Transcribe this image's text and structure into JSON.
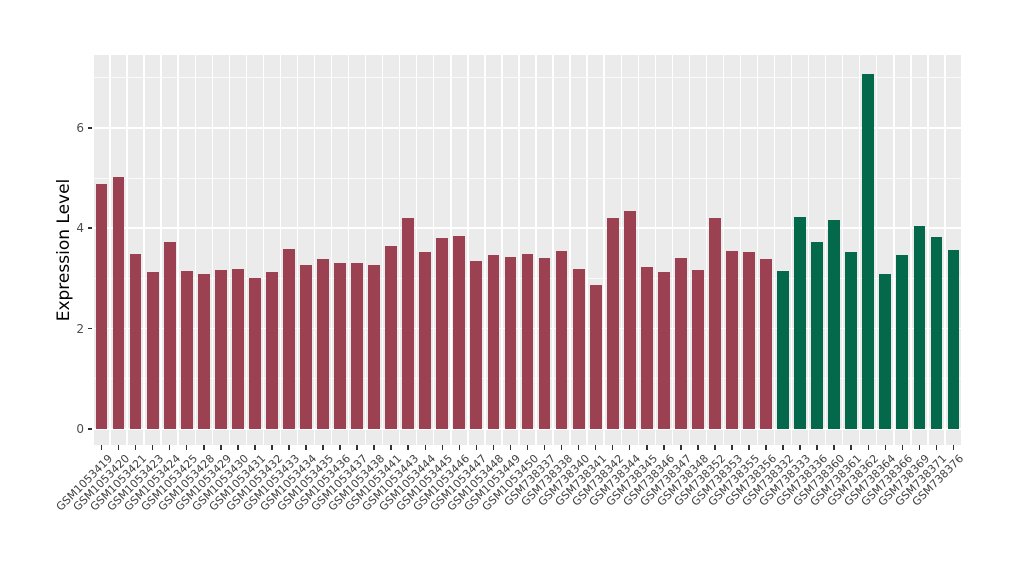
{
  "figure": {
    "background": "#FFFFFF",
    "panel_background": "#EBEBEB",
    "gridline_color": "#FFFFFF",
    "tick_mark_color": "#333333",
    "axis_text_color": "#404040",
    "axis_title_color": "#000000"
  },
  "chart_data": {
    "type": "bar",
    "title": "",
    "xlabel": "",
    "ylabel": "Expression Level",
    "ylim": [
      -0.33,
      7.45
    ],
    "yticks": [
      0,
      2,
      4,
      6
    ],
    "yticks_minor": [
      1,
      3,
      5,
      7
    ],
    "grid": "major+minor, white on gray panel",
    "legend": "none",
    "palette": [
      "#9B4151",
      "#04684A"
    ],
    "categories": [
      "GSM1053419",
      "GSM1053420",
      "GSM1053421",
      "GSM1053423",
      "GSM1053424",
      "GSM1053425",
      "GSM1053428",
      "GSM1053429",
      "GSM1053430",
      "GSM1053431",
      "GSM1053432",
      "GSM1053433",
      "GSM1053434",
      "GSM1053435",
      "GSM1053436",
      "GSM1053437",
      "GSM1053438",
      "GSM1053441",
      "GSM1053443",
      "GSM1053444",
      "GSM1053445",
      "GSM1053446",
      "GSM1053447",
      "GSM1053448",
      "GSM1053449",
      "GSM1053450",
      "GSM738337",
      "GSM738338",
      "GSM738340",
      "GSM738341",
      "GSM738342",
      "GSM738344",
      "GSM738345",
      "GSM738346",
      "GSM738347",
      "GSM738348",
      "GSM738352",
      "GSM738353",
      "GSM738355",
      "GSM738356",
      "GSM738332",
      "GSM738333",
      "GSM738336",
      "GSM738360",
      "GSM738361",
      "GSM738362",
      "GSM738364",
      "GSM738366",
      "GSM738369",
      "GSM738371",
      "GSM738376"
    ],
    "values": [
      4.88,
      5.02,
      3.49,
      3.13,
      3.73,
      3.15,
      3.08,
      3.16,
      3.18,
      3.01,
      3.13,
      3.59,
      3.26,
      3.39,
      3.31,
      3.31,
      3.26,
      3.65,
      4.2,
      3.53,
      3.81,
      3.85,
      3.34,
      3.47,
      3.43,
      3.49,
      3.41,
      3.55,
      3.19,
      2.87,
      4.21,
      4.35,
      3.23,
      3.13,
      3.41,
      3.16,
      4.2,
      3.55,
      3.53,
      3.38,
      3.15,
      4.23,
      3.72,
      4.16,
      3.52,
      7.08,
      3.09,
      3.46,
      4.05,
      3.83,
      3.57
    ],
    "groups": [
      0,
      0,
      0,
      0,
      0,
      0,
      0,
      0,
      0,
      0,
      0,
      0,
      0,
      0,
      0,
      0,
      0,
      0,
      0,
      0,
      0,
      0,
      0,
      0,
      0,
      0,
      0,
      0,
      0,
      0,
      0,
      0,
      0,
      0,
      0,
      0,
      0,
      0,
      0,
      0,
      1,
      1,
      1,
      1,
      1,
      1,
      1,
      1,
      1,
      1,
      1
    ]
  }
}
